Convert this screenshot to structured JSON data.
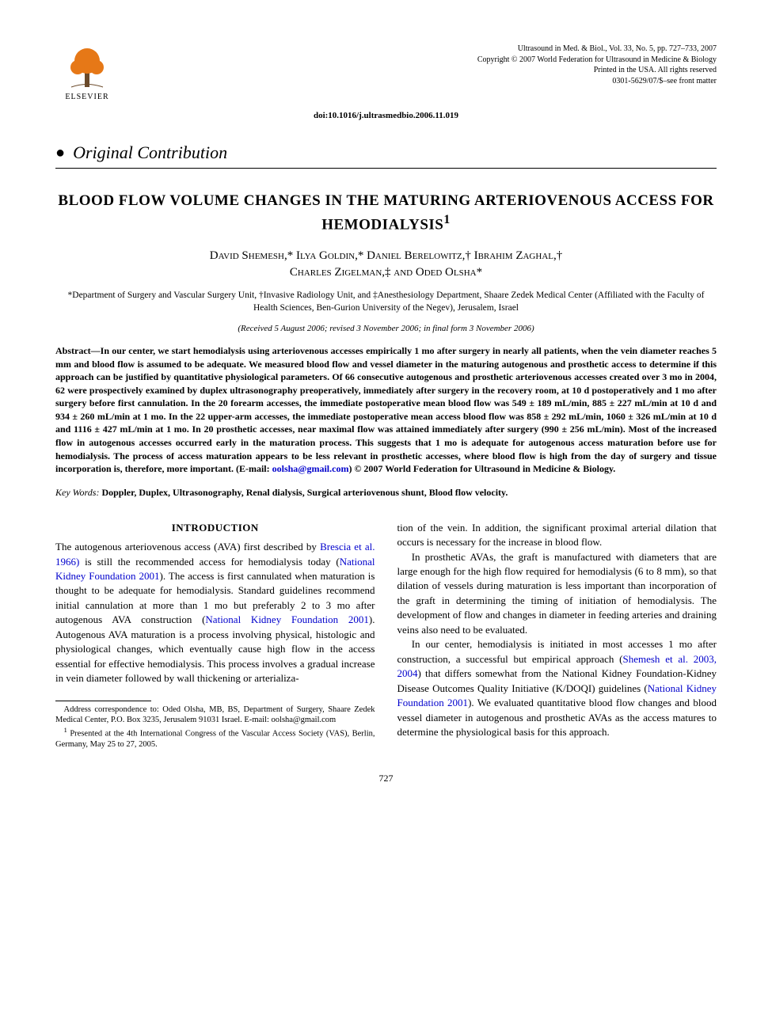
{
  "publisher": {
    "logo_label": "ELSEVIER",
    "logo_fill": "#e67817",
    "logo_trunk": "#6b4a2a"
  },
  "journal_meta": {
    "line1": "Ultrasound in Med. & Biol., Vol. 33, No. 5, pp. 727–733, 2007",
    "line2": "Copyright © 2007 World Federation for Ultrasound in Medicine & Biology",
    "line3": "Printed in the USA. All rights reserved",
    "line4": "0301-5629/07/$–see front matter"
  },
  "doi": "doi:10.1016/j.ultrasmedbio.2006.11.019",
  "section_type": "Original Contribution",
  "title": "BLOOD FLOW VOLUME CHANGES IN THE MATURING ARTERIOVENOUS ACCESS FOR HEMODIALYSIS",
  "title_note_marker": "1",
  "authors_html": "David Shemesh,* Ilya Goldin,* Daniel Berelowitz,† Ibrahim Zaghal,†<br>Charles Zigelman,‡ and Oded Olsha*",
  "affiliations": "*Department of Surgery and Vascular Surgery Unit, †Invasive Radiology Unit, and ‡Anesthesiology Department, Shaare Zedek Medical Center (Affiliated with the Faculty of Health Sciences, Ben-Gurion University of the Negev), Jerusalem, Israel",
  "dates": "(Received 5 August 2006; revised 3 November 2006; in final form 3 November 2006)",
  "abstract": {
    "label": "Abstract—",
    "body": "In our center, we start hemodialysis using arteriovenous accesses empirically 1 mo after surgery in nearly all patients, when the vein diameter reaches 5 mm and blood flow is assumed to be adequate. We measured blood flow and vessel diameter in the maturing autogenous and prosthetic access to determine if this approach can be justified by quantitative physiological parameters. Of 66 consecutive autogenous and prosthetic arteriovenous accesses created over 3 mo in 2004, 62 were prospectively examined by duplex ultrasonography preoperatively, immediately after surgery in the recovery room, at 10 d postoperatively and 1 mo after surgery before first cannulation. In the 20 forearm accesses, the immediate postoperative mean blood flow was 549 ± 189 mL/min, 885 ± 227 mL/min at 10 d and 934 ± 260 mL/min at 1 mo. In the 22 upper-arm accesses, the immediate postoperative mean access blood flow was 858 ± 292 mL/min, 1060 ± 326 mL/min at 10 d and 1116 ± 427 mL/min at 1 mo. In 20 prosthetic accesses, near maximal flow was attained immediately after surgery (990 ± 256 mL/min). Most of the increased flow in autogenous accesses occurred early in the maturation process. This suggests that 1 mo is adequate for autogenous access maturation before use for hemodialysis. The process of access maturation appears to be less relevant in prosthetic accesses, where blood flow is high from the day of surgery and tissue incorporation is, therefore, more important. (E-mail: ",
    "email": "oolsha@gmail.com",
    "tail": ")   © 2007 World Federation for Ultrasound in Medicine & Biology."
  },
  "keywords": {
    "label": "Key Words:",
    "body": " Doppler, Duplex, Ultrasonography, Renal dialysis, Surgical arteriovenous shunt, Blood flow velocity."
  },
  "intro_heading": "INTRODUCTION",
  "left_col": {
    "p1a": "The autogenous arteriovenous access (AVA) first described by ",
    "c1": "Brescia et al. 1966)",
    "p1b": " is still the recommended access for hemodialysis today (",
    "c2": "National Kidney Foundation 2001",
    "p1c": "). The access is first cannulated when maturation is thought to be adequate for hemodialysis. Standard guidelines recommend initial cannulation at more than 1 mo but preferably 2 to 3 mo after autogenous AVA construction (",
    "c3": "National Kidney Foundation 2001",
    "p1d": "). Autogenous AVA maturation is a process involving physical, histologic and physiological changes, which eventually cause high flow in the access essential for effective hemodialysis. This process involves a gradual increase in vein diameter followed by wall thickening or arterializa-"
  },
  "right_col": {
    "p1": "tion of the vein. In addition, the significant proximal arterial dilation that occurs is necessary for the increase in blood flow.",
    "p2": "In prosthetic AVAs, the graft is manufactured with diameters that are large enough for the high flow required for hemodialysis (6 to 8 mm), so that dilation of vessels during maturation is less important than incorporation of the graft in determining the timing of initiation of hemodialysis. The development of flow and changes in diameter in feeding arteries and draining veins also need to be evaluated.",
    "p3a": "In our center, hemodialysis is initiated in most accesses 1 mo after construction, a successful but empirical approach (",
    "c4": "Shemesh et al. 2003, 2004",
    "p3b": ") that differs somewhat from the National Kidney Foundation-Kidney Disease Outcomes Quality Initiative (K/DOQI) guidelines (",
    "c5": "National Kidney Foundation 2001",
    "p3c": "). We evaluated quantitative blood flow changes and blood vessel diameter in autogenous and prosthetic AVAs as the access matures to determine the physiological basis for this approach."
  },
  "footnotes": {
    "address": "Address correspondence to: Oded Olsha, MB, BS, Department of Surgery, Shaare Zedek Medical Center, P.O. Box 3235, Jerusalem 91031 Israel. E-mail: oolsha@gmail.com",
    "note1_marker": "1",
    "note1": " Presented at the 4th International Congress of the Vascular Access Society (VAS), Berlin, Germany, May 25 to 27, 2005."
  },
  "page_number": "727",
  "colors": {
    "text": "#000000",
    "link": "#0000cc",
    "background": "#ffffff"
  },
  "typography": {
    "body_font": "Times New Roman",
    "title_fontsize_pt": 15,
    "authors_fontsize_pt": 12,
    "body_fontsize_pt": 10,
    "abstract_fontsize_pt": 9
  }
}
